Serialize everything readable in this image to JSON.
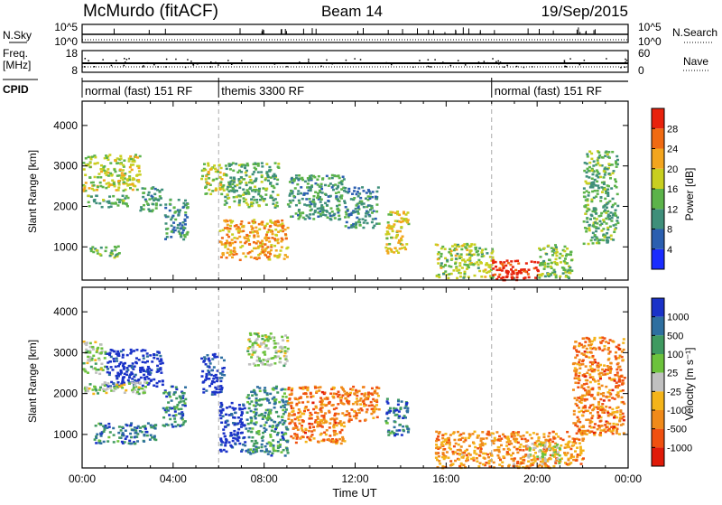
{
  "header": {
    "station": "McMurdo (fitACF)",
    "beam": "Beam 14",
    "date": "19/Sep/2015"
  },
  "top_panels": {
    "nsky": {
      "label": "N.Sky",
      "right_label": "N.Search",
      "ticks_left": [
        "10^5",
        "10^0"
      ],
      "ticks_right": [
        "10^5",
        "10^0"
      ]
    },
    "freq": {
      "label_line1": "Freq.",
      "label_line2": "[MHz]",
      "right_label": "Nave",
      "ticks_left": [
        "18",
        "8"
      ],
      "ticks_right": [
        "60",
        "0"
      ]
    },
    "cpid": {
      "label": "CPID",
      "segments": [
        {
          "start_hour": 0,
          "text": "normal (fast) 151 RF"
        },
        {
          "start_hour": 6,
          "text": "themis 3300 RF"
        },
        {
          "start_hour": 18,
          "text": "normal (fast) 151 RF"
        }
      ]
    }
  },
  "chart_data": [
    {
      "type": "heatmap",
      "name": "power",
      "ylabel": "Slant Range [km]",
      "ylim": [
        180,
        4600
      ],
      "yticks": [
        1000,
        2000,
        3000,
        4000
      ],
      "colorbar": {
        "label": "Power [dB]",
        "ticks": [
          "4",
          "8",
          "12",
          "16",
          "20",
          "24",
          "28"
        ],
        "colors": [
          "#1a2cff",
          "#2b5fb0",
          "#3f8f7a",
          "#5cb34a",
          "#c8cf20",
          "#f3a51e",
          "#f06a12",
          "#e8220c"
        ]
      },
      "regions": [
        {
          "x": [
            0.0,
            2.5
          ],
          "y": [
            2400,
            3300
          ],
          "level": 0.55
        },
        {
          "x": [
            0.2,
            2.0
          ],
          "y": [
            2000,
            2300
          ],
          "level": 0.4
        },
        {
          "x": [
            0.3,
            1.6
          ],
          "y": [
            750,
            1050
          ],
          "level": 0.45
        },
        {
          "x": [
            2.5,
            3.5
          ],
          "y": [
            1900,
            2500
          ],
          "level": 0.35
        },
        {
          "x": [
            3.6,
            4.6
          ],
          "y": [
            1200,
            2200
          ],
          "level": 0.3
        },
        {
          "x": [
            5.2,
            6.2
          ],
          "y": [
            2300,
            3100
          ],
          "level": 0.55
        },
        {
          "x": [
            6.0,
            9.0
          ],
          "y": [
            700,
            1700
          ],
          "level": 0.7
        },
        {
          "x": [
            6.2,
            8.6
          ],
          "y": [
            2000,
            3100
          ],
          "level": 0.4
        },
        {
          "x": [
            9.0,
            11.5
          ],
          "y": [
            1700,
            2800
          ],
          "level": 0.35
        },
        {
          "x": [
            11.5,
            13.0
          ],
          "y": [
            1500,
            2500
          ],
          "level": 0.3
        },
        {
          "x": [
            13.3,
            14.3
          ],
          "y": [
            850,
            1900
          ],
          "level": 0.6
        },
        {
          "x": [
            15.5,
            18.0
          ],
          "y": [
            250,
            1100
          ],
          "level": 0.5
        },
        {
          "x": [
            18.0,
            20.0
          ],
          "y": [
            200,
            700
          ],
          "level": 0.95
        },
        {
          "x": [
            20.0,
            21.5
          ],
          "y": [
            250,
            1100
          ],
          "level": 0.45
        },
        {
          "x": [
            22.0,
            23.5
          ],
          "y": [
            1100,
            3400
          ],
          "level": 0.4
        }
      ]
    },
    {
      "type": "heatmap",
      "name": "velocity",
      "xlabel": "Time UT",
      "ylabel": "Slant Range [km]",
      "ylim": [
        180,
        4600
      ],
      "yticks": [
        1000,
        2000,
        3000,
        4000
      ],
      "xticks": [
        "00:00",
        "04:00",
        "08:00",
        "12:00",
        "16:00",
        "20:00",
        "00:00"
      ],
      "colorbar": {
        "label": "Velocity [m s⁻¹]",
        "ticks": [
          "1000",
          "500",
          "100",
          "25",
          "-25",
          "-100",
          "-500",
          "-1000"
        ],
        "colors": [
          "#1a32c8",
          "#2e6fa0",
          "#3f9a60",
          "#6cc23c",
          "#c0c0c0",
          "#f4b41a",
          "#f08a1a",
          "#f05010",
          "#e01a08"
        ]
      },
      "regions": [
        {
          "x": [
            0.0,
            1.0
          ],
          "y": [
            2500,
            3300
          ],
          "level": 0.45
        },
        {
          "x": [
            1.0,
            3.5
          ],
          "y": [
            2200,
            3100
          ],
          "level": 0.02
        },
        {
          "x": [
            0.0,
            3.0
          ],
          "y": [
            2000,
            2300
          ],
          "level": 0.45
        },
        {
          "x": [
            0.5,
            3.2
          ],
          "y": [
            800,
            1300
          ],
          "level": 0.2
        },
        {
          "x": [
            3.5,
            4.5
          ],
          "y": [
            1200,
            2200
          ],
          "level": 0.2
        },
        {
          "x": [
            5.2,
            6.2
          ],
          "y": [
            2000,
            3000
          ],
          "level": 0.05
        },
        {
          "x": [
            6.0,
            7.2
          ],
          "y": [
            600,
            1800
          ],
          "level": 0.02
        },
        {
          "x": [
            7.2,
            9.0
          ],
          "y": [
            500,
            2200
          ],
          "level": 0.25
        },
        {
          "x": [
            7.2,
            9.0
          ],
          "y": [
            2700,
            3500
          ],
          "level": 0.45
        },
        {
          "x": [
            9.0,
            11.5
          ],
          "y": [
            800,
            2200
          ],
          "level": 0.75
        },
        {
          "x": [
            11.5,
            13.0
          ],
          "y": [
            1300,
            2200
          ],
          "level": 0.75
        },
        {
          "x": [
            13.3,
            14.3
          ],
          "y": [
            1000,
            1900
          ],
          "level": 0.2
        },
        {
          "x": [
            15.5,
            22.0
          ],
          "y": [
            200,
            1100
          ],
          "level": 0.7
        },
        {
          "x": [
            19.5,
            21.0
          ],
          "y": [
            300,
            800
          ],
          "level": 0.5
        },
        {
          "x": [
            21.5,
            23.8
          ],
          "y": [
            1000,
            3400
          ],
          "level": 0.75
        }
      ]
    }
  ]
}
